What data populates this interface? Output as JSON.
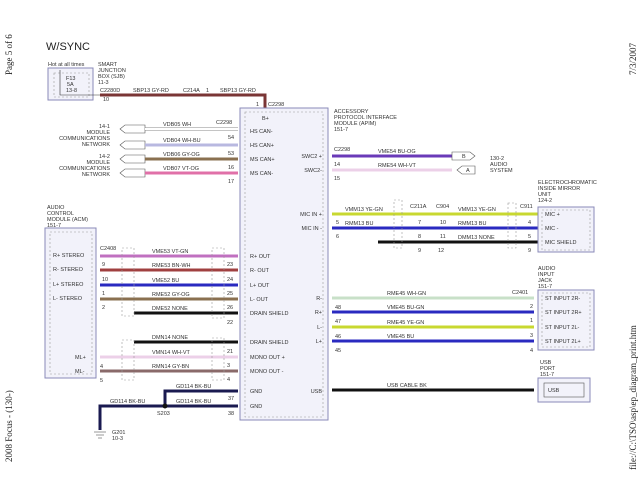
{
  "page": {
    "page_number": "Page 5 of 6",
    "date": "7/3/2007",
    "footer_left": "2008 Focus - (130-)",
    "footer_right": "file://C:\\TSO\\asp\\ep_diagram_print.htm",
    "title": "W/SYNC"
  },
  "sjb": {
    "hot": "Hot at all times",
    "fuse": "F13",
    "amps": "5A",
    "loc": "13-8",
    "name1": "SMART",
    "name2": "JUNCTION",
    "name3": "BOX (SJB)",
    "ref": "11-3",
    "conn": "C2280D",
    "pin": "10",
    "wire1": "SBP13  GY-RD",
    "conn2": "C214A",
    "pin2": "1",
    "wire2": "SBP13  GY-RD",
    "pin3": "1",
    "conn3": "C2298"
  },
  "arm": {
    "l1": "ACCESSORY",
    "l2": "PROTOCOL INTERFACE",
    "l3": "MODULE (APIM)",
    "ref": "151-7",
    "bplus": "B+",
    "pins_left": [
      "HS CAN-",
      "HS CAN+",
      "MS CAN+",
      "MS CAN-",
      "R+ OUT",
      "R- OUT",
      "L+ OUT",
      "L- OUT",
      "DRAIN SHIELD",
      "DRAIN SHIELD",
      "MONO OUT +",
      "MONO OUT -",
      "GND",
      "GND"
    ],
    "pins_right": [
      "SWC2 +",
      "SWC2-",
      "MIC IN +",
      "MIC IN -",
      "R-",
      "R+",
      "L-",
      "L+",
      "USB"
    ]
  },
  "can": {
    "net1": [
      "14-1",
      "MODULE",
      "COMMUNICATIONS",
      "NETWORK"
    ],
    "net2": [
      "14-2",
      "MODULE",
      "COMMUNICATIONS",
      "NETWORK"
    ],
    "conn": "C2298",
    "wires": [
      "VDB05  WH",
      "VDB04  WH-BU",
      "VDB06  GY-OG",
      "VDB07  VT-OG"
    ],
    "pins": [
      "54",
      "53",
      "16",
      "17"
    ]
  },
  "audio": {
    "conn": "C2298",
    "wires": [
      "VME54  BU-OG",
      "RME54  WH-VT"
    ],
    "pins": [
      "14",
      "15"
    ],
    "conns": [
      "B",
      "A"
    ],
    "ref": "130-2",
    "l1": "AUDIO",
    "l2": "SYSTEM"
  },
  "mic": {
    "wires": [
      "VMM13  YE-GN",
      "RMM13  BU",
      "VMM13  YE-GN",
      "RMM13  BU",
      "DMM13  NONE"
    ],
    "conns": [
      "C211A",
      "C904",
      "C911"
    ],
    "pins": [
      "5",
      "6",
      "7",
      "8",
      "9",
      "10",
      "11",
      "12",
      "4",
      "5",
      "9"
    ],
    "l1": "ELECTROCHROMATIC",
    "l2": "INSIDE MIRROR",
    "l3": "UNIT",
    "ref": "124-2",
    "pins_box": [
      "MIC +",
      "MIC -",
      "MIC SHIELD"
    ]
  },
  "acm": {
    "l1": "AUDIO",
    "l2": "CONTROL",
    "l3": "MODULE (ACM)",
    "ref": "151-7",
    "conn": "C2408",
    "pins_box": [
      "R+ STEREO",
      "R- STEREO",
      "L+ STEREO",
      "L- STEREO",
      "ML+",
      "ML-"
    ],
    "wires": [
      "VME53  VT-GN",
      "RME53  BN-WH",
      "VME52  BU",
      "RME52  GY-OG",
      "DME52  NONE",
      "DMN14  NONE",
      "VMN14  WH-VT",
      "RMN14  GY-BN"
    ],
    "pins_left": [
      "9",
      "10",
      "1",
      "2",
      "4",
      "5"
    ],
    "pins_right": [
      "23",
      "24",
      "25",
      "26",
      "22",
      "21",
      "3",
      "4"
    ]
  },
  "gnd": {
    "wires": [
      "GD114  BK-BU",
      "GD114  BK-BU",
      "GD114  BK-BU"
    ],
    "splice": "S203",
    "pins": [
      "37",
      "38"
    ],
    "ground": "G201",
    "ref": "10-3"
  },
  "jack": {
    "l1": "AUDIO",
    "l2": "INPUT",
    "l3": "JACK",
    "ref": "151-7",
    "conn": "C2401",
    "wires": [
      "RME45  WH-GN",
      "VME45  BU-GN",
      "RME45  YE-GN",
      "VME45  BU"
    ],
    "pins_box": [
      "ST INPUT 2R-",
      "ST INPUT 2R+",
      "ST INPUT 2L-",
      "ST INPUT 2L+"
    ],
    "pins": [
      "48",
      "47",
      "46",
      "45",
      "2",
      "1",
      "3",
      "4"
    ]
  },
  "usb": {
    "l1": "USB",
    "l2": "PORT",
    "ref": "151-7",
    "wire": "USB CABLE   BK",
    "box": "USB"
  },
  "colors": {
    "gy_rd": "#7a3535",
    "wh": "#ffffff",
    "wh_bu": "#b8b8e0",
    "gy_og": "#8a7050",
    "vt_og": "#e070a8",
    "bu_og": "#6a3ab8",
    "wh_vt": "#ecd0e8",
    "ye_gn": "#c8d830",
    "bu": "#2a2ac0",
    "bk": "#111111",
    "vt_gn": "#c070c0",
    "bn_wh": "#a04040",
    "gy_bn": "#8a6a6a",
    "wh_gn": "#c8e0c8"
  }
}
